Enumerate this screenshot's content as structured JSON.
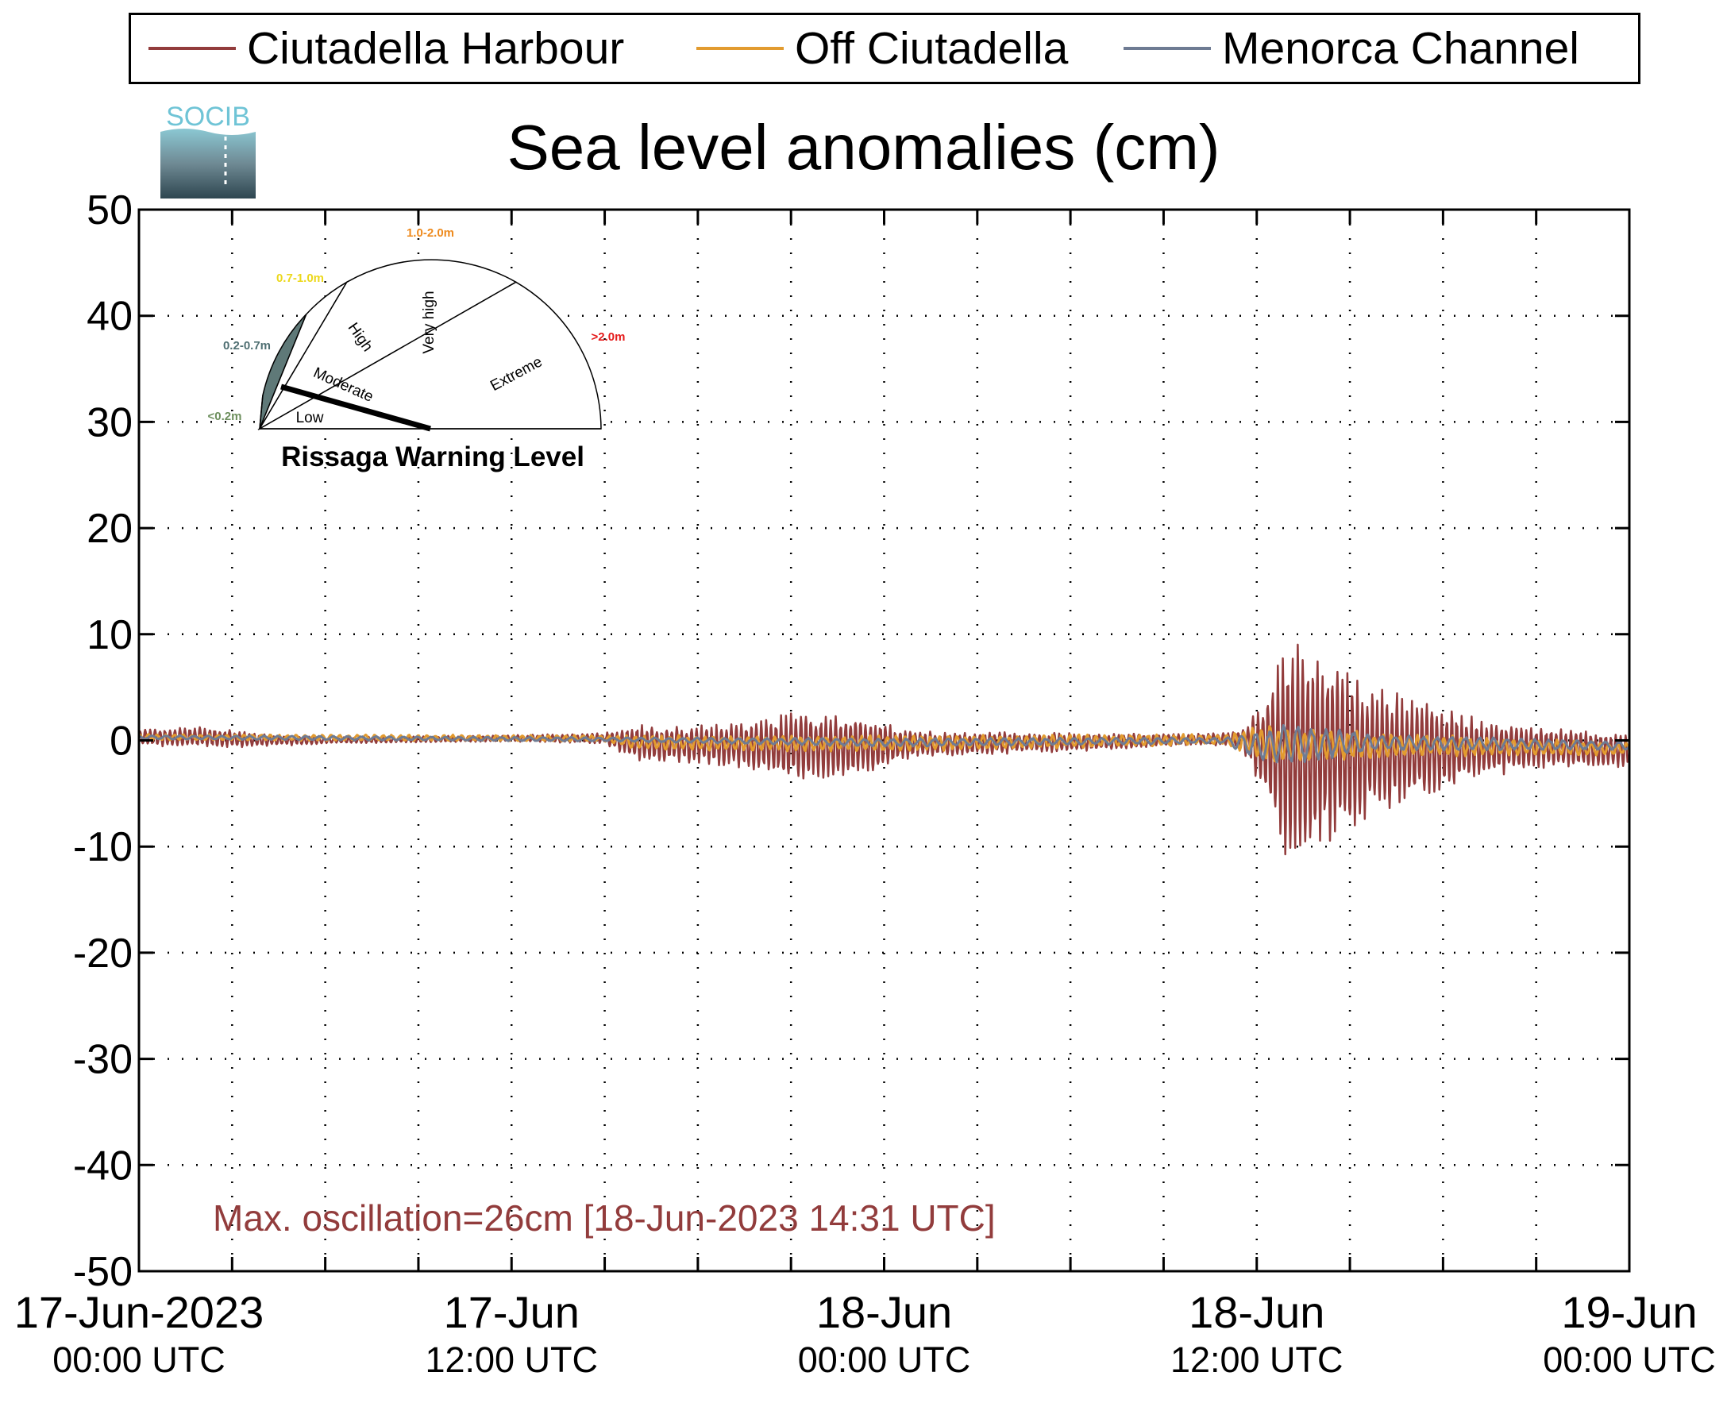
{
  "legend": {
    "items": [
      {
        "name": "Ciutadella Harbour",
        "color": "#923c3c"
      },
      {
        "name": "Off Ciutadella",
        "color": "#e29b2f"
      },
      {
        "name": "Menorca Channel",
        "color": "#6e7b93"
      }
    ]
  },
  "title": "Sea level anomalies (cm)",
  "logo": {
    "text": "SOCIB",
    "icon": "socib-logo-icon"
  },
  "annotation": "Max. oscillation=26cm [18-Jun-2023 14:31 UTC]",
  "annotation_color": "#923c3c",
  "gauge": {
    "title": "Rissaga Warning Level",
    "current_level": "Moderate",
    "segments": [
      {
        "name": "Low",
        "range": "<0.2m",
        "range_color": "#6d8f5d"
      },
      {
        "name": "Moderate",
        "range": "0.2-0.7m",
        "range_color": "#4f6f72",
        "fill": "#5f7978"
      },
      {
        "name": "High",
        "range": "0.7-1.0m",
        "range_color": "#ecd81c"
      },
      {
        "name": "Very high",
        "range": "1.0-2.0m",
        "range_color": "#ee8a1d"
      },
      {
        "name": "Extreme",
        "range": ">2.0m",
        "range_color": "#e51b1b"
      }
    ]
  },
  "chart_data": {
    "type": "line",
    "title": "Sea level anomalies (cm)",
    "xlabel": "",
    "ylabel": "",
    "ylim": [
      -50,
      50
    ],
    "yticks": [
      50,
      40,
      30,
      20,
      10,
      0,
      -10,
      -20,
      -30,
      -40,
      -50
    ],
    "xlim": [
      "17-Jun-2023 00:00 UTC",
      "19-Jun-2023 00:00 UTC"
    ],
    "xticks": [
      {
        "date": "17-Jun-2023",
        "time": "00:00 UTC"
      },
      {
        "date": "17-Jun",
        "time": "12:00 UTC"
      },
      {
        "date": "18-Jun",
        "time": "00:00 UTC"
      },
      {
        "date": "18-Jun",
        "time": "12:00 UTC"
      },
      {
        "date": "19-Jun",
        "time": "00:00 UTC"
      }
    ],
    "grid": true,
    "legend_position": "top",
    "series": [
      {
        "name": "Ciutadella Harbour",
        "color": "#923c3c",
        "envelope": [
          {
            "hour": 0,
            "mean": 0.3,
            "amp": 0.8
          },
          {
            "hour": 2,
            "mean": 0.3,
            "amp": 1.0
          },
          {
            "hour": 4,
            "mean": 0.0,
            "amp": 0.6
          },
          {
            "hour": 6,
            "mean": 0.0,
            "amp": 0.3
          },
          {
            "hour": 12,
            "mean": 0.2,
            "amp": 0.3
          },
          {
            "hour": 15,
            "mean": 0.2,
            "amp": 0.5
          },
          {
            "hour": 16,
            "mean": -0.3,
            "amp": 1.8
          },
          {
            "hour": 18,
            "mean": -0.4,
            "amp": 1.8
          },
          {
            "hour": 20,
            "mean": -0.5,
            "amp": 2.4
          },
          {
            "hour": 21,
            "mean": -0.5,
            "amp": 3.2
          },
          {
            "hour": 23,
            "mean": -0.5,
            "amp": 3.0
          },
          {
            "hour": 24,
            "mean": -0.5,
            "amp": 2.2
          },
          {
            "hour": 25,
            "mean": -0.3,
            "amp": 1.2
          },
          {
            "hour": 30,
            "mean": -0.2,
            "amp": 0.9
          },
          {
            "hour": 34,
            "mean": 0.1,
            "amp": 0.5
          },
          {
            "hour": 35.5,
            "mean": 0.1,
            "amp": 0.8
          },
          {
            "hour": 36.2,
            "mean": -0.5,
            "amp": 4.5
          },
          {
            "hour": 37,
            "mean": -1.0,
            "amp": 10.5
          },
          {
            "hour": 38.5,
            "mean": -1.0,
            "amp": 8.5
          },
          {
            "hour": 40,
            "mean": -1.0,
            "amp": 6.0
          },
          {
            "hour": 43,
            "mean": -0.8,
            "amp": 3.0
          },
          {
            "hour": 45,
            "mean": -0.6,
            "amp": 2.0
          },
          {
            "hour": 48,
            "mean": -1.0,
            "amp": 1.5
          }
        ]
      },
      {
        "name": "Off Ciutadella",
        "color": "#e29b2f",
        "envelope": [
          {
            "hour": 0,
            "mean": 0.3,
            "amp": 0.3
          },
          {
            "hour": 15,
            "mean": 0.2,
            "amp": 0.3
          },
          {
            "hour": 16,
            "mean": -0.2,
            "amp": 0.7
          },
          {
            "hour": 24,
            "mean": -0.3,
            "amp": 0.8
          },
          {
            "hour": 35,
            "mean": 0.1,
            "amp": 0.5
          },
          {
            "hour": 36.2,
            "mean": -0.3,
            "amp": 1.8
          },
          {
            "hour": 37,
            "mean": -0.5,
            "amp": 1.7
          },
          {
            "hour": 42,
            "mean": -0.5,
            "amp": 1.0
          },
          {
            "hour": 48,
            "mean": -0.8,
            "amp": 0.6
          }
        ]
      },
      {
        "name": "Menorca Channel",
        "color": "#6e7b93",
        "envelope": [
          {
            "hour": 0,
            "mean": 0.3,
            "amp": 0.2
          },
          {
            "hour": 15,
            "mean": 0.1,
            "amp": 0.2
          },
          {
            "hour": 24,
            "mean": -0.2,
            "amp": 0.4
          },
          {
            "hour": 35,
            "mean": 0.0,
            "amp": 0.3
          },
          {
            "hour": 36,
            "mean": -0.5,
            "amp": 1.5
          },
          {
            "hour": 37,
            "mean": -0.3,
            "amp": 2.0
          },
          {
            "hour": 40,
            "mean": -0.2,
            "amp": 0.8
          },
          {
            "hour": 48,
            "mean": -0.5,
            "amp": 0.4
          }
        ]
      }
    ],
    "annotations": [
      "Max. oscillation=26cm [18-Jun-2023 14:31 UTC]"
    ]
  }
}
